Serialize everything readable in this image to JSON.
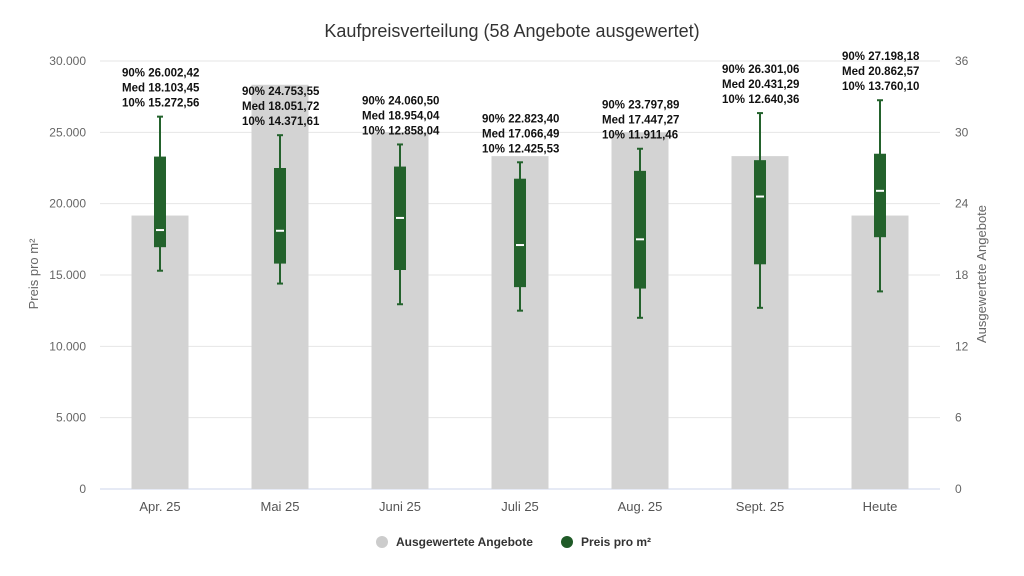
{
  "chart_data": {
    "type": "bar",
    "title": "Kaufpreisverteilung (58 Angebote ausgewertet)",
    "categories": [
      "Apr. 25",
      "Mai 25",
      "Juni 25",
      "Juli 25",
      "Aug. 25",
      "Sept. 25",
      "Heute"
    ],
    "y_left": {
      "label": "Preis pro m²",
      "range": [
        0,
        30000
      ],
      "ticks": [
        "0",
        "5.000",
        "10.000",
        "15.000",
        "20.000",
        "25.000",
        "30.000"
      ],
      "tick_values": [
        0,
        5000,
        10000,
        15000,
        20000,
        25000,
        30000
      ]
    },
    "y_right": {
      "label": "Ausgewertete Angebote",
      "range": [
        0,
        36
      ],
      "ticks": [
        "0",
        "6",
        "12",
        "18",
        "24",
        "30",
        "36"
      ],
      "tick_values": [
        0,
        6,
        12,
        18,
        24,
        30,
        36
      ]
    },
    "grid": true,
    "legend_position": "bottom-center",
    "series": [
      {
        "name": "Ausgewertete Angebote",
        "type": "bar",
        "axis": "right",
        "color": "#d3d3d3",
        "values": [
          23,
          34,
          30,
          28,
          30,
          28,
          23
        ]
      },
      {
        "name": "Preis pro m²",
        "type": "boxplot",
        "axis": "left",
        "color": "#23622c",
        "whisker_low": [
          15300,
          14400,
          12950,
          12500,
          12000,
          12700,
          13850
        ],
        "q1": [
          16950,
          15800,
          15350,
          14150,
          14050,
          15750,
          17650
        ],
        "median": [
          18150,
          18100,
          19000,
          17100,
          17500,
          20500,
          20900
        ],
        "q3": [
          23300,
          22500,
          22600,
          21750,
          22300,
          23050,
          23500
        ],
        "whisker_high": [
          26100,
          24800,
          24150,
          22900,
          23850,
          26350,
          27250
        ]
      }
    ],
    "annotations": [
      [
        "90% 26.002,42",
        "Med 18.103,45",
        "10% 15.272,56"
      ],
      [
        "90% 24.753,55",
        "Med 18.051,72",
        "10% 14.371,61"
      ],
      [
        "90% 24.060,50",
        "Med 18.954,04",
        "10% 12.858,04"
      ],
      [
        "90% 22.823,40",
        "Med 17.066,49",
        "10% 12.425,53"
      ],
      [
        "90% 23.797,89",
        "Med 17.447,27",
        "10% 11.911,46"
      ],
      [
        "90% 26.301,06",
        "Med 20.431,29",
        "10% 12.640,36"
      ],
      [
        "90% 27.198,18",
        "Med 20.862,57",
        "10% 13.760,10"
      ]
    ]
  }
}
